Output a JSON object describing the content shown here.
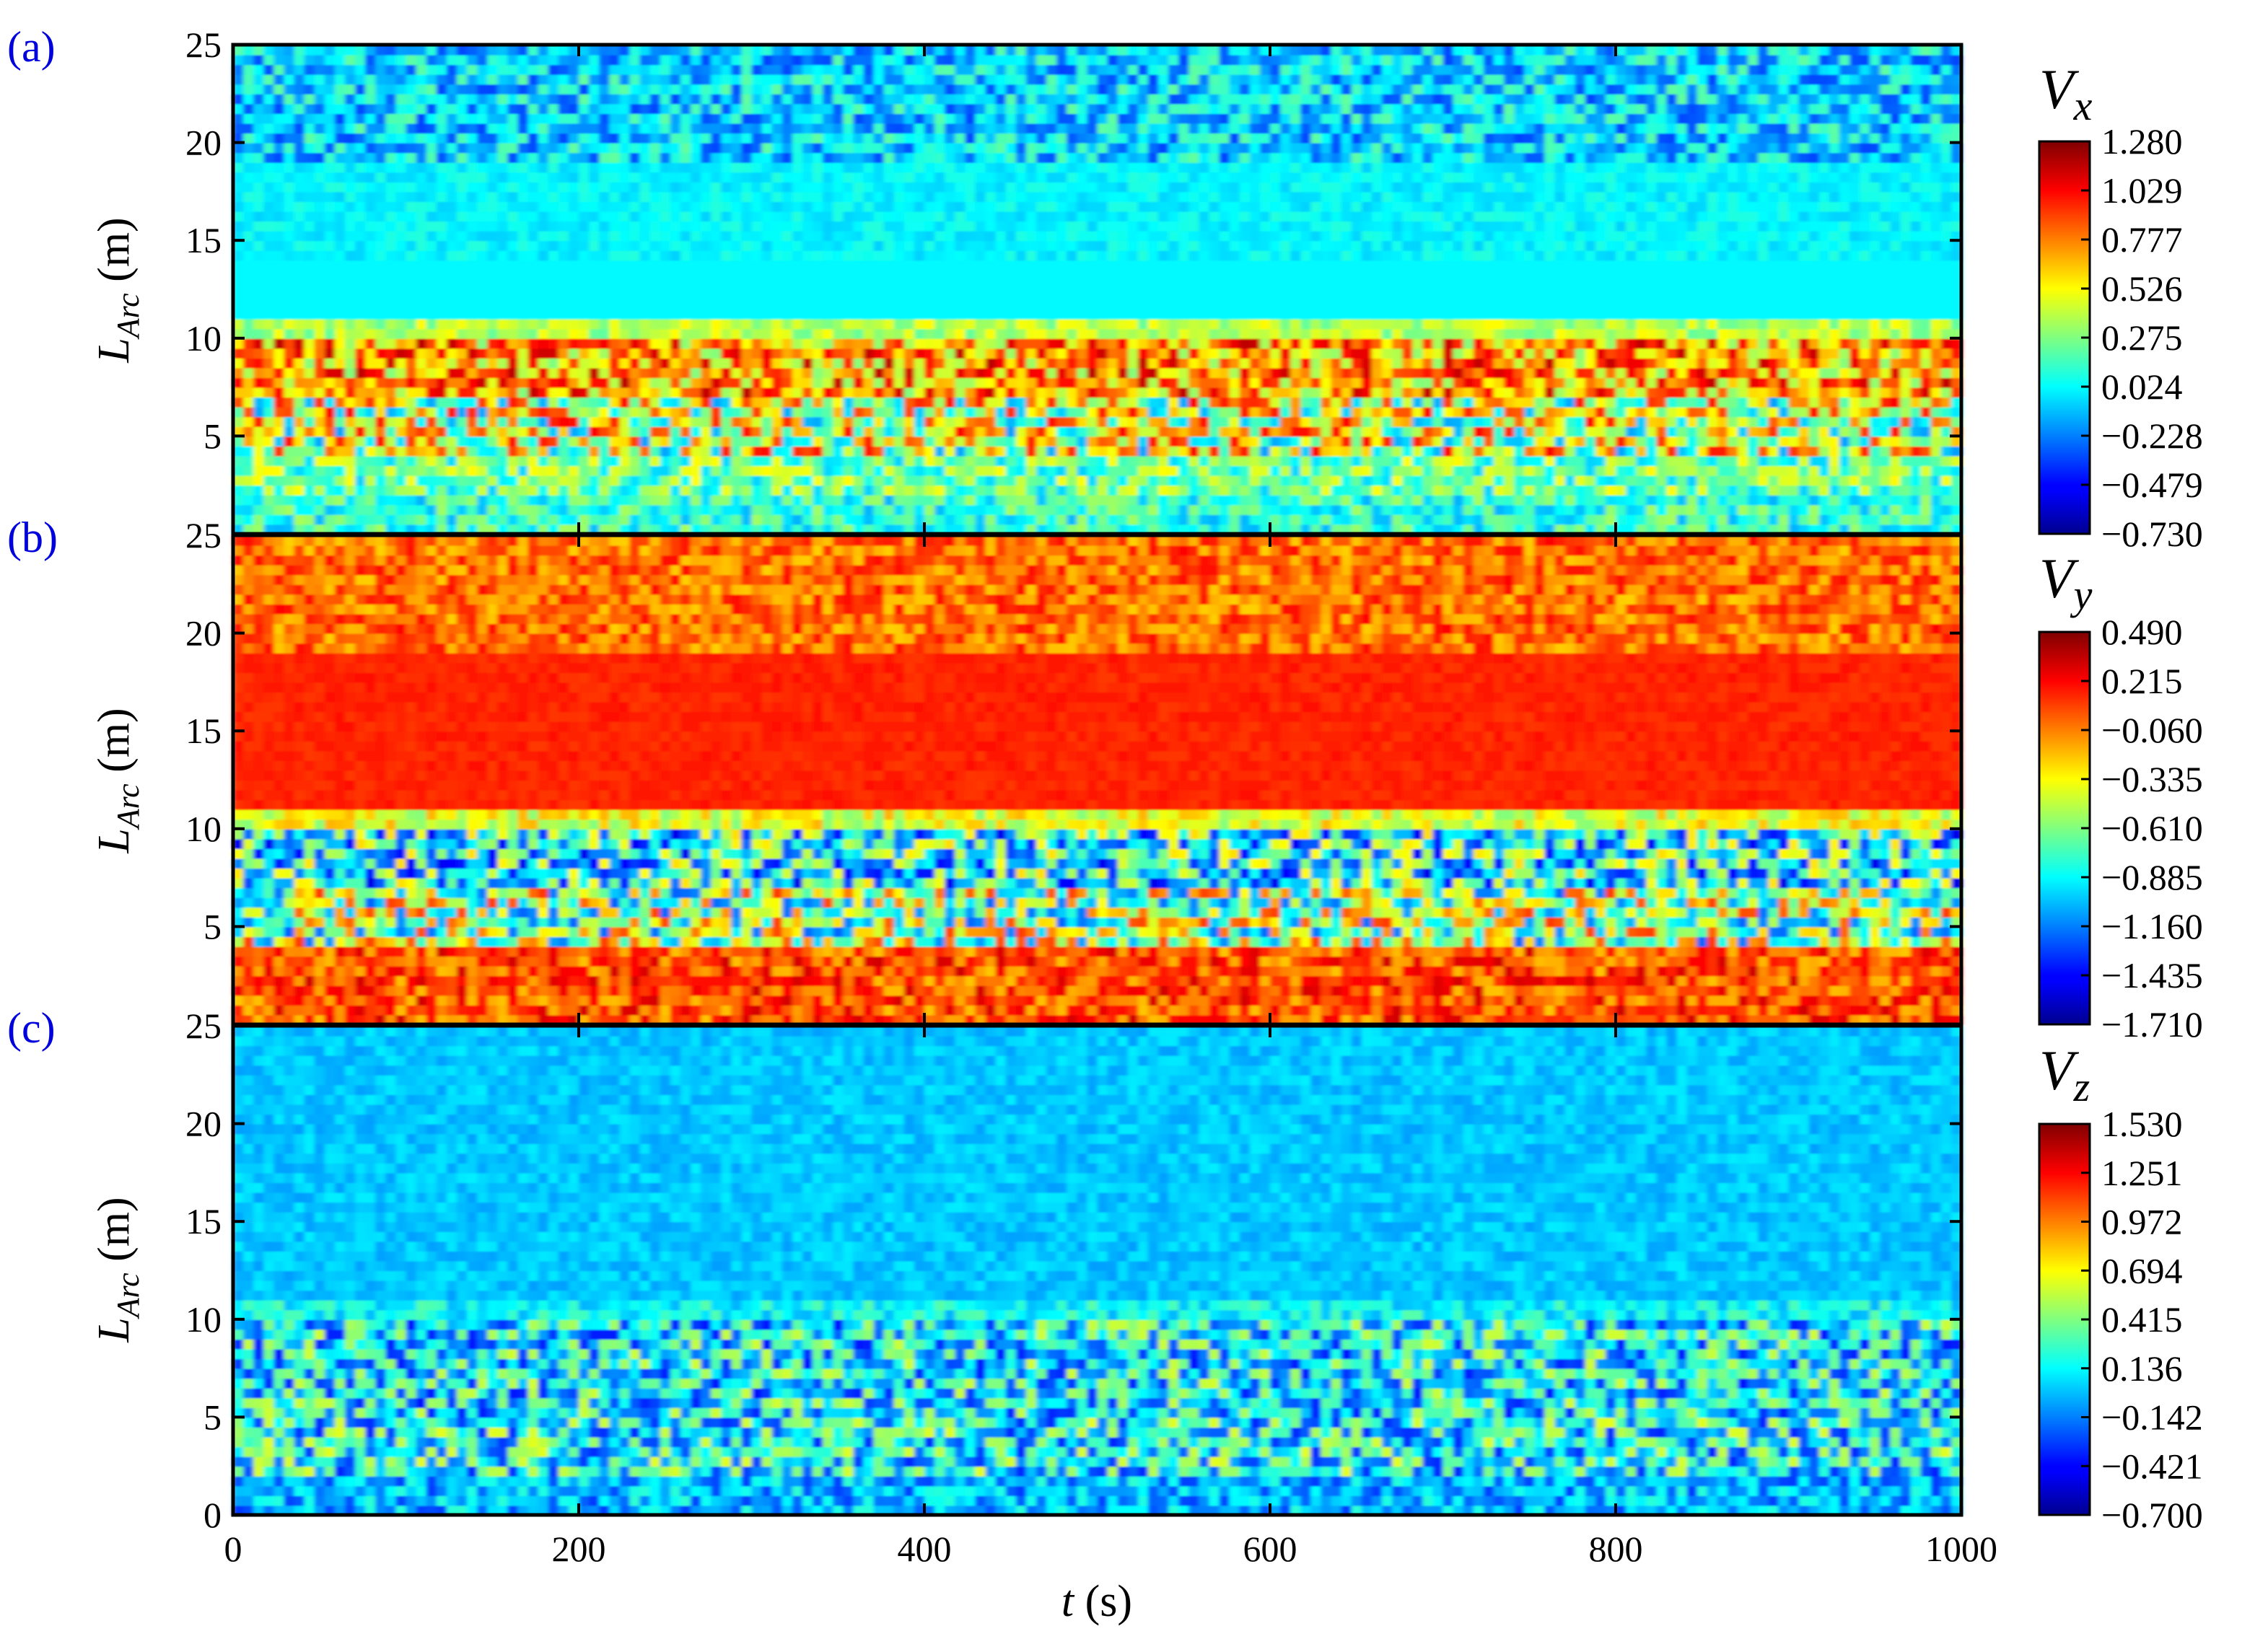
{
  "chart_data": [
    {
      "type": "heatmap",
      "panel_label": "(a)",
      "variable": "V",
      "variable_sub": "x",
      "ylabel": "L",
      "ylabel_sub": "Arc",
      "ylabel_unit": " (m)",
      "xlim": [
        0,
        1000
      ],
      "ylim": [
        0,
        25
      ],
      "yticks": [
        "5",
        "10",
        "15",
        "20",
        "25"
      ],
      "colorbar": {
        "min": -0.73,
        "max": 1.28,
        "labels": [
          "1.280",
          "1.029",
          "0.777",
          "0.526",
          "0.275",
          "0.024",
          "−0.228",
          "−0.479",
          "−0.730"
        ]
      },
      "bands": [
        {
          "y": [
            0,
            2
          ],
          "level": 0.42,
          "texture": 0.12
        },
        {
          "y": [
            2,
            4
          ],
          "level": 0.48,
          "texture": 0.15
        },
        {
          "y": [
            4,
            7
          ],
          "level": 0.58,
          "texture": 0.3
        },
        {
          "y": [
            7,
            10
          ],
          "level": 0.72,
          "texture": 0.22
        },
        {
          "y": [
            10,
            11
          ],
          "level": 0.55,
          "texture": 0.08
        },
        {
          "y": [
            11,
            14
          ],
          "level": 0.37,
          "texture": 0.0
        },
        {
          "y": [
            14,
            19
          ],
          "level": 0.37,
          "texture": 0.04
        },
        {
          "y": [
            19,
            25
          ],
          "level": 0.33,
          "texture": 0.14
        }
      ]
    },
    {
      "type": "heatmap",
      "panel_label": "(b)",
      "variable": "V",
      "variable_sub": "y",
      "ylabel": "L",
      "ylabel_sub": "Arc",
      "ylabel_unit": " (m)",
      "xlim": [
        0,
        1000
      ],
      "ylim": [
        0,
        25
      ],
      "yticks": [
        "5",
        "10",
        "15",
        "20",
        "25"
      ],
      "colorbar": {
        "min": -1.71,
        "max": 0.49,
        "labels": [
          "0.490",
          "0.215",
          "−0.060",
          "−0.335",
          "−0.610",
          "−0.885",
          "−1.160",
          "−1.435",
          "−1.710"
        ]
      },
      "bands": [
        {
          "y": [
            0,
            4
          ],
          "level": 0.8,
          "texture": 0.12
        },
        {
          "y": [
            4,
            7
          ],
          "level": 0.52,
          "texture": 0.3
        },
        {
          "y": [
            7,
            10
          ],
          "level": 0.38,
          "texture": 0.28
        },
        {
          "y": [
            10,
            11
          ],
          "level": 0.6,
          "texture": 0.1
        },
        {
          "y": [
            11,
            19
          ],
          "level": 0.84,
          "texture": 0.02
        },
        {
          "y": [
            19,
            25
          ],
          "level": 0.77,
          "texture": 0.1
        }
      ]
    },
    {
      "type": "heatmap",
      "panel_label": "(c)",
      "variable": "V",
      "variable_sub": "z",
      "ylabel": "L",
      "ylabel_sub": "Arc",
      "ylabel_unit": " (m)",
      "xlim": [
        0,
        1000
      ],
      "ylim": [
        0,
        25
      ],
      "yticks": [
        "0",
        "5",
        "10",
        "15",
        "20",
        "25"
      ],
      "xticks": [
        "0",
        "200",
        "400",
        "600",
        "800",
        "1000"
      ],
      "xlabel": "t",
      "xlabel_unit": " (s)",
      "colorbar": {
        "min": -0.7,
        "max": 1.53,
        "labels": [
          "1.530",
          "1.251",
          "0.972",
          "0.694",
          "0.415",
          "0.136",
          "−0.142",
          "−0.421",
          "−0.700"
        ]
      },
      "bands": [
        {
          "y": [
            0,
            2
          ],
          "level": 0.3,
          "texture": 0.12
        },
        {
          "y": [
            2,
            5
          ],
          "level": 0.38,
          "texture": 0.22
        },
        {
          "y": [
            5,
            10
          ],
          "level": 0.36,
          "texture": 0.22
        },
        {
          "y": [
            10,
            11
          ],
          "level": 0.38,
          "texture": 0.08
        },
        {
          "y": [
            11,
            25
          ],
          "level": 0.32,
          "texture": 0.04
        }
      ]
    }
  ]
}
